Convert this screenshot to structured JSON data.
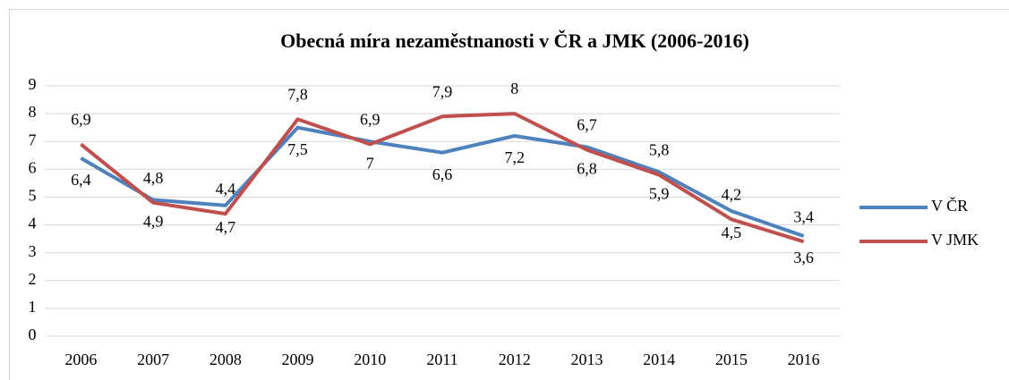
{
  "chart_data": {
    "type": "line",
    "title": "Obecná míra nezaměstnanosti v ČR a JMK (2006-2016)",
    "categories": [
      "2006",
      "2007",
      "2008",
      "2009",
      "2010",
      "2011",
      "2012",
      "2013",
      "2014",
      "2015",
      "2016"
    ],
    "series": [
      {
        "name": "V ČR",
        "color": "#4f81bd",
        "values": [
          6.4,
          4.9,
          4.7,
          7.5,
          7.0,
          6.6,
          7.2,
          6.8,
          5.9,
          4.5,
          3.6
        ],
        "value_labels": [
          "6,4",
          "4,9",
          "4,7",
          "7,5",
          "7",
          "6,6",
          "7,2",
          "6,8",
          "5,9",
          "4,5",
          "3,6"
        ]
      },
      {
        "name": "V JMK",
        "color": "#c0504d",
        "values": [
          6.9,
          4.8,
          4.4,
          7.8,
          6.9,
          7.9,
          8.0,
          6.7,
          5.8,
          4.2,
          3.4
        ],
        "value_labels": [
          "6,9",
          "4,8",
          "4,4",
          "7,8",
          "6,9",
          "7,9",
          "8",
          "6,7",
          "5,8",
          "4,2",
          "3,4"
        ]
      }
    ],
    "ylim": [
      0,
      9
    ],
    "yticks": [
      0,
      1,
      2,
      3,
      4,
      5,
      6,
      7,
      8,
      9
    ],
    "grid": true,
    "legend": "right"
  }
}
